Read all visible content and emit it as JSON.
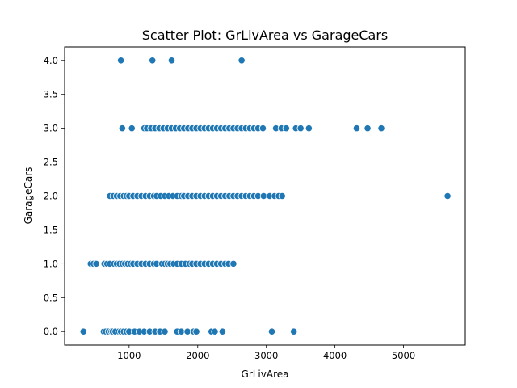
{
  "chart_data": {
    "type": "scatter",
    "title": "Scatter Plot: GrLivArea vs GarageCars",
    "xlabel": "GrLivArea",
    "ylabel": "GarageCars",
    "xlim": [
      60,
      5900
    ],
    "ylim": [
      -0.2,
      4.2
    ],
    "xticks": [
      1000,
      2000,
      3000,
      4000,
      5000
    ],
    "yticks": [
      0.0,
      0.5,
      1.0,
      1.5,
      2.0,
      2.5,
      3.0,
      3.5,
      4.0
    ],
    "ytick_labels": [
      "0.0",
      "0.5",
      "1.0",
      "1.5",
      "2.0",
      "2.5",
      "3.0",
      "3.5",
      "4.0"
    ],
    "grid": false,
    "legend": null,
    "color": "#1f77b4",
    "series": [
      {
        "x": [
          334,
          630,
          660,
          700,
          740,
          760,
          800,
          850,
          880,
          920,
          960,
          1000,
          1080,
          1150,
          1220,
          1300,
          1380,
          1450,
          1520,
          1700,
          1760,
          1850,
          1940,
          1980,
          2200,
          2250,
          2360,
          3080,
          3400,
          440,
          480,
          520,
          640,
          680,
          720,
          780,
          820,
          860,
          900,
          940,
          980,
          1020,
          1060,
          1120,
          1180,
          1240,
          1300,
          1360,
          1400,
          1480,
          1520,
          1560,
          1600,
          1650,
          1700,
          1760,
          1820,
          1880,
          1920,
          1980,
          2040,
          2100,
          2160,
          2220,
          2280,
          2340,
          2400,
          2450,
          2520,
          720,
          770,
          820,
          870,
          920,
          960,
          1000,
          1060,
          1120,
          1180,
          1240,
          1300,
          1360,
          1400,
          1460,
          1520,
          1580,
          1640,
          1700,
          1760,
          1800,
          1860,
          1920,
          1980,
          2040,
          2100,
          2160,
          2220,
          2280,
          2340,
          2400,
          2460,
          2520,
          2580,
          2640,
          2700,
          2760,
          2820,
          2880,
          2960,
          3050,
          3120,
          3180,
          3230,
          5642,
          900,
          1040,
          1220,
          1260,
          1320,
          1380,
          1440,
          1500,
          1560,
          1620,
          1680,
          1740,
          1800,
          1860,
          1920,
          1980,
          2040,
          2100,
          2160,
          2220,
          2280,
          2340,
          2400,
          2460,
          2520,
          2580,
          2640,
          2700,
          2760,
          2820,
          2880,
          2950,
          3140,
          3220,
          3290,
          3430,
          3500,
          3620,
          4316,
          4476,
          4676,
          880,
          1340,
          1620,
          2640
        ]
      }
    ],
    "y_values": [
      0,
      0,
      0,
      0,
      0,
      0,
      0,
      0,
      0,
      0,
      0,
      0,
      0,
      0,
      0,
      0,
      0,
      0,
      0,
      0,
      0,
      0,
      0,
      0,
      0,
      0,
      0,
      0,
      0,
      1,
      1,
      1,
      1,
      1,
      1,
      1,
      1,
      1,
      1,
      1,
      1,
      1,
      1,
      1,
      1,
      1,
      1,
      1,
      1,
      1,
      1,
      1,
      1,
      1,
      1,
      1,
      1,
      1,
      1,
      1,
      1,
      1,
      1,
      1,
      1,
      1,
      1,
      1,
      1,
      2,
      2,
      2,
      2,
      2,
      2,
      2,
      2,
      2,
      2,
      2,
      2,
      2,
      2,
      2,
      2,
      2,
      2,
      2,
      2,
      2,
      2,
      2,
      2,
      2,
      2,
      2,
      2,
      2,
      2,
      2,
      2,
      2,
      2,
      2,
      2,
      2,
      2,
      2,
      2,
      2,
      2,
      2,
      2,
      2,
      3,
      3,
      3,
      3,
      3,
      3,
      3,
      3,
      3,
      3,
      3,
      3,
      3,
      3,
      3,
      3,
      3,
      3,
      3,
      3,
      3,
      3,
      3,
      3,
      3,
      3,
      3,
      3,
      3,
      3,
      3,
      3,
      3,
      3,
      3,
      3,
      3,
      3,
      3,
      3,
      3,
      4,
      4,
      4,
      4
    ]
  }
}
